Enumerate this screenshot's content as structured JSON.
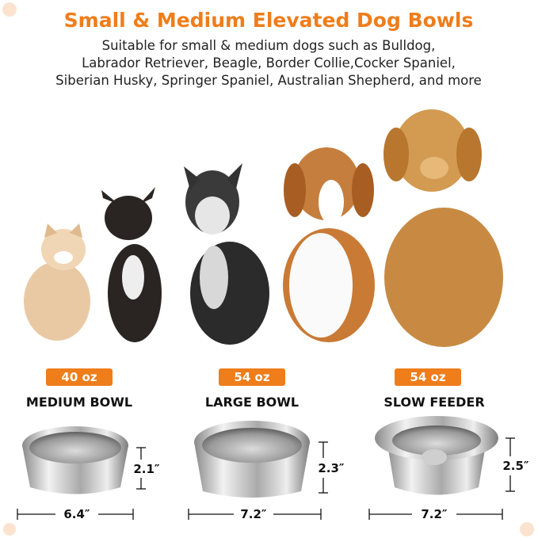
{
  "header": {
    "title": "Small & Medium Elevated Dog Bowls",
    "subtitle_lines": [
      "Suitable for small & medium dogs such as Bulldog,",
      "Labrador Retriever, Beagle, Border Collie,Cocker Spaniel,",
      "Siberian Husky, Springer Spaniel, Australian Shepherd, and more"
    ]
  },
  "products": [
    {
      "capacity": "40 oz",
      "name": "MEDIUM BOWL",
      "height": "2.1″",
      "diameter": "6.4″"
    },
    {
      "capacity": "54 oz",
      "name": "LARGE BOWL",
      "height": "2.3″",
      "diameter": "7.2″"
    },
    {
      "capacity": "54 oz",
      "name": "SLOW FEEDER",
      "height": "2.5″",
      "diameter": "7.2″"
    }
  ]
}
